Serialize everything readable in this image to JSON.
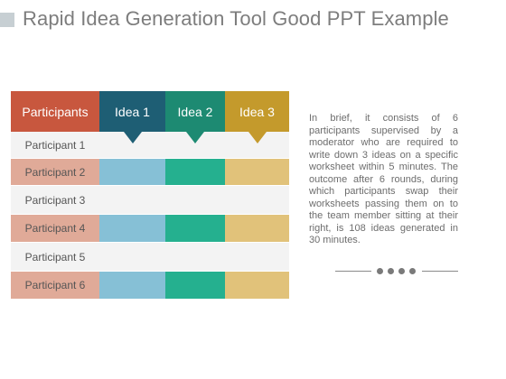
{
  "slide": {
    "title": "Rapid Idea Generation Tool Good PPT Example",
    "body_text": "In brief, it consists of 6 participants supervised by a moderator who are required to write down 3 ideas on a specific worksheet within 5 minutes. The outcome after 6 rounds, during which participants swap their worksheets passing them on to the team member sitting at their right, is 108 ideas generated in 30 minutes."
  },
  "table": {
    "headers": [
      "Participants",
      "Idea 1",
      "Idea 2",
      "Idea 3"
    ],
    "header_colors": [
      "#c8573e",
      "#1e5e74",
      "#1d8a72",
      "#c49a2c"
    ],
    "rows": [
      "Participant 1",
      "Participant 2",
      "Participant 3",
      "Participant 4",
      "Participant 5",
      "Participant 6"
    ],
    "colors": {
      "odd_row": "#f3f3f3",
      "even_label": "#e0aa98",
      "even_idea": [
        "#86c0d6",
        "#25b08f",
        "#e1c27a"
      ]
    }
  }
}
